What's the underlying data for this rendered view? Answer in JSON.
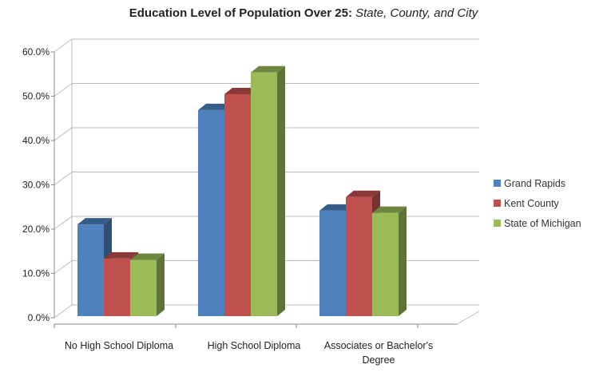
{
  "chart_data": {
    "type": "bar",
    "title": "Education Level of Population Over 25:",
    "title_italic": "State, County, and City",
    "categories": [
      "No High School Diploma",
      "High School Diploma",
      "Associates or Bachelor's Degree"
    ],
    "series": [
      {
        "name": "Grand Rapids",
        "values": [
          20.7,
          46.5,
          23.8
        ],
        "color": "#4f81bd"
      },
      {
        "name": "Kent County",
        "values": [
          13.0,
          50.1,
          26.9
        ],
        "color": "#c0504d"
      },
      {
        "name": "State of Michigan",
        "values": [
          12.7,
          55.0,
          23.3
        ],
        "color": "#9bbb59"
      }
    ],
    "y_ticks": [
      "0.0%",
      "10.0%",
      "20.0%",
      "30.0%",
      "40.0%",
      "50.0%",
      "60.0%"
    ],
    "ylim": [
      0,
      60
    ],
    "grid": true,
    "legend": "right",
    "three_d": true
  }
}
